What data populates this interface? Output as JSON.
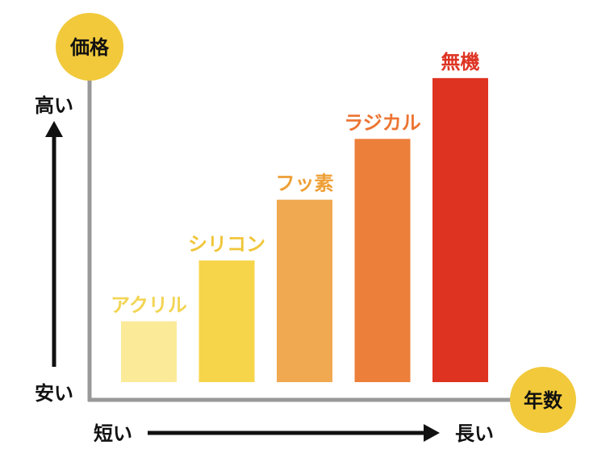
{
  "chart_data": {
    "type": "bar",
    "categories": [
      "アクリル",
      "シリコン",
      "フッ素",
      "ラジカル",
      "無機"
    ],
    "values": [
      1,
      2,
      3,
      4,
      5
    ],
    "ylim": [
      0,
      5.25
    ],
    "y_axis_badge": "価格",
    "x_axis_badge": "年数",
    "y_high_label": "高い",
    "y_low_label": "安い",
    "x_short_label": "短い",
    "x_long_label": "長い",
    "grid": false,
    "legend": "none"
  },
  "colors": {
    "bars": [
      "#fbea98",
      "#f6d54a",
      "#f0a950",
      "#ec7f3a",
      "#df3322"
    ],
    "labels": [
      "#f3d453",
      "#f0c63a",
      "#ee9f36",
      "#ec7432",
      "#de3322"
    ],
    "badge": "#f1c93b",
    "axis": "#999999",
    "arrow": "#111111"
  }
}
